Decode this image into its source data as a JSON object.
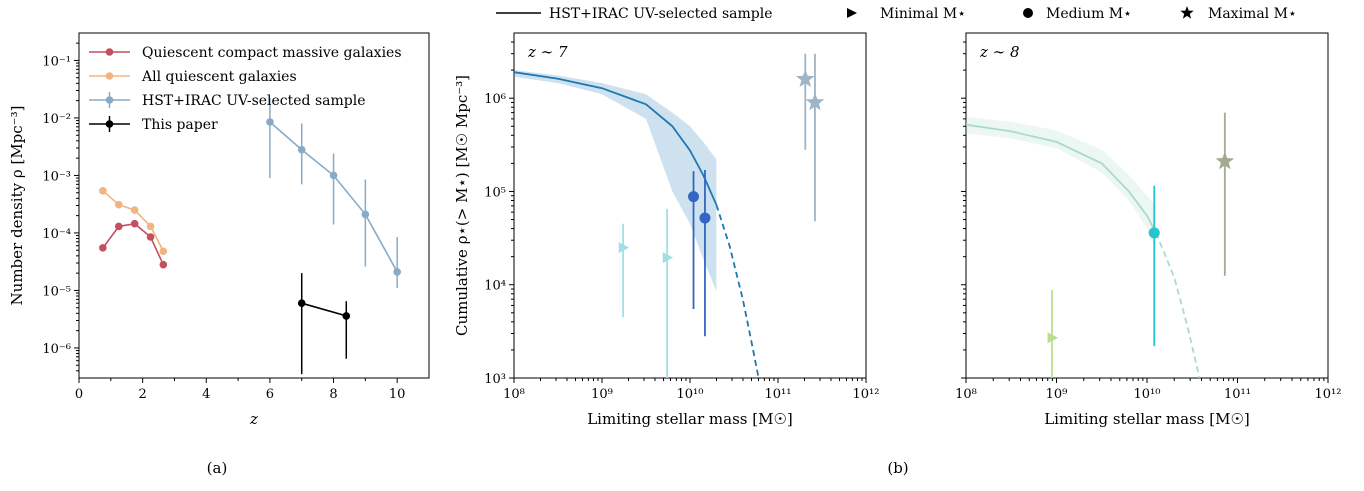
{
  "figure": {
    "caption_a": "(a)",
    "caption_b": "(b)"
  },
  "chart_data": [
    {
      "type": "line",
      "panel": "(a)",
      "xlabel": "z",
      "ylabel": "Number density ρ [Mpc⁻³]",
      "xlim": [
        0,
        11
      ],
      "ylim": [
        3e-07,
        0.3
      ],
      "yscale": "log",
      "xticks": [
        "0",
        "2",
        "4",
        "6",
        "8",
        "10"
      ],
      "yticks": [
        "10⁻⁶",
        "10⁻⁵",
        "10⁻⁴",
        "10⁻³",
        "10⁻²",
        "10⁻¹"
      ],
      "legend_position": "top-left",
      "colors": {
        "red": "#c4505f",
        "orange": "#f0b482",
        "blue": "#8aaac4",
        "black": "#000000"
      },
      "series": [
        {
          "name": "Quiescent compact massive galaxies",
          "color": "#c4505f",
          "points": [
            {
              "x": 0.75,
              "y": 5.5e-05
            },
            {
              "x": 1.25,
              "y": 0.00013
            },
            {
              "x": 1.75,
              "y": 0.000145
            },
            {
              "x": 2.25,
              "y": 8.5e-05
            },
            {
              "x": 2.65,
              "y": 2.8e-05
            }
          ]
        },
        {
          "name": "All quiescent galaxies",
          "color": "#f0b482",
          "points": [
            {
              "x": 0.75,
              "y": 0.00054
            },
            {
              "x": 1.25,
              "y": 0.00031
            },
            {
              "x": 1.75,
              "y": 0.00025
            },
            {
              "x": 2.25,
              "y": 0.00013
            },
            {
              "x": 2.65,
              "y": 4.8e-05
            }
          ]
        },
        {
          "name": "HST+IRAC UV-selected sample",
          "color": "#8aaac4",
          "points": [
            {
              "x": 6,
              "y": 0.0085,
              "lo": 0.0009,
              "hi": 0.022
            },
            {
              "x": 7,
              "y": 0.0028,
              "lo": 0.0007,
              "hi": 0.008
            },
            {
              "x": 8,
              "y": 0.001,
              "lo": 0.00014,
              "hi": 0.0024
            },
            {
              "x": 9,
              "y": 0.00021,
              "lo": 2.6e-05,
              "hi": 0.00085
            },
            {
              "x": 10,
              "y": 2.1e-05,
              "lo": 1.1e-05,
              "hi": 8.5e-05
            }
          ]
        },
        {
          "name": "This paper",
          "color": "#000000",
          "points": [
            {
              "x": 7,
              "y": 6e-06,
              "lo": 3.5e-07,
              "hi": 2e-05
            },
            {
              "x": 8.4,
              "y": 3.6e-06,
              "lo": 6.5e-07,
              "hi": 6.5e-06
            }
          ]
        }
      ]
    },
    {
      "type": "line",
      "panel": "(b) z ~ 7",
      "annotation": "z ∼ 7",
      "xlabel": "Limiting stellar mass [M☉]",
      "ylabel": "Cumulative ρ⋆(> M⋆) [M☉ Mpc⁻³]",
      "xscale": "log",
      "yscale": "log",
      "xlim": [
        100000000.0,
        1000000000000.0
      ],
      "ylim": [
        1000.0,
        5000000.0
      ],
      "xticks": [
        "10⁸",
        "10⁹",
        "10¹⁰",
        "10¹¹",
        "10¹²"
      ],
      "yticks": [
        "10³",
        "10⁴",
        "10⁵",
        "10⁶"
      ],
      "curve": {
        "name": "HST+IRAC UV-selected sample",
        "color": "#1f77b4",
        "solid": [
          [
            8.0,
            1900000.0
          ],
          [
            8.5,
            1620000.0
          ],
          [
            9.0,
            1280000.0
          ],
          [
            9.5,
            860000.0
          ],
          [
            9.8,
            500000.0
          ],
          [
            10.0,
            275000.0
          ],
          [
            10.15,
            150000.0
          ],
          [
            10.3,
            72000.0
          ]
        ],
        "dashed": [
          [
            10.3,
            72000.0
          ],
          [
            10.45,
            26000.0
          ],
          [
            10.6,
            7000.0
          ],
          [
            10.7,
            2400.0
          ],
          [
            10.78,
            1000.0
          ]
        ],
        "band_upper": [
          [
            8.0,
            2000000.0
          ],
          [
            8.5,
            1750000.0
          ],
          [
            9.0,
            1450000.0
          ],
          [
            9.5,
            1100000.0
          ],
          [
            9.8,
            700000.0
          ],
          [
            10.0,
            500000.0
          ],
          [
            10.15,
            340000.0
          ],
          [
            10.3,
            220000.0
          ]
        ],
        "band_lower": [
          [
            10.3,
            8500.0
          ],
          [
            10.15,
            19000.0
          ],
          [
            10.0,
            45000.0
          ],
          [
            9.8,
            100000.0
          ],
          [
            9.5,
            600000.0
          ],
          [
            9.0,
            1100000.0
          ],
          [
            8.5,
            1450000.0
          ],
          [
            8.0,
            1700000.0
          ]
        ]
      },
      "points": [
        {
          "name": "Minimal M⋆",
          "marker": "triangle",
          "color": "#a0e0e4",
          "x": 9.24,
          "y": 25000.0,
          "lo": 4500.0,
          "hi": 45000.0
        },
        {
          "name": "Minimal M⋆",
          "marker": "triangle",
          "color": "#a0e0e4",
          "x": 9.74,
          "y": 19500.0,
          "lo": 1000.0,
          "hi": 65000.0
        },
        {
          "name": "Medium M⋆",
          "marker": "circle",
          "color": "#3366c4",
          "x": 10.04,
          "y": 88000.0,
          "lo": 5500.0,
          "hi": 165000.0
        },
        {
          "name": "Medium M⋆",
          "marker": "circle",
          "color": "#3366c4",
          "x": 10.17,
          "y": 52000.0,
          "lo": 2800.0,
          "hi": 170000.0
        },
        {
          "name": "Maximal M⋆",
          "marker": "star",
          "color": "#9fb4c4",
          "x": 11.31,
          "y": 1600000.0,
          "lo": 280000.0,
          "hi": 3000000.0
        },
        {
          "name": "Maximal M⋆",
          "marker": "star",
          "color": "#9fb4c4",
          "x": 11.42,
          "y": 900000.0,
          "lo": 48000.0,
          "hi": 3000000.0
        }
      ]
    },
    {
      "type": "line",
      "panel": "(b) z ~ 8",
      "annotation": "z ∼ 8",
      "xlabel": "Limiting stellar mass [M☉]",
      "xscale": "log",
      "yscale": "log",
      "xlim": [
        100000000.0,
        1000000000000.0
      ],
      "ylim": [
        1000.0,
        5000000.0
      ],
      "xticks": [
        "10⁸",
        "10⁹",
        "10¹⁰",
        "10¹¹",
        "10¹²"
      ],
      "curve": {
        "name": "HST+IRAC UV-selected sample",
        "color": "#a8dcc8",
        "solid": [
          [
            8.0,
            520000.0
          ],
          [
            8.5,
            440000.0
          ],
          [
            9.0,
            340000.0
          ],
          [
            9.5,
            200000.0
          ],
          [
            9.8,
            100000.0
          ],
          [
            10.0,
            55000.0
          ],
          [
            10.1,
            36000.0
          ]
        ],
        "dashed": [
          [
            10.1,
            36000.0
          ],
          [
            10.3,
            12000.0
          ],
          [
            10.45,
            3500.0
          ],
          [
            10.58,
            1000.0
          ]
        ],
        "band_upper": [
          [
            8.0,
            630000.0
          ],
          [
            8.5,
            560000.0
          ],
          [
            9.0,
            450000.0
          ],
          [
            9.5,
            280000.0
          ],
          [
            9.8,
            150000.0
          ],
          [
            10.0,
            90000.0
          ],
          [
            10.1,
            70000.0
          ]
        ],
        "band_lower": [
          [
            10.1,
            23000.0
          ],
          [
            10.0,
            40000.0
          ],
          [
            9.8,
            80000.0
          ],
          [
            9.5,
            160000.0
          ],
          [
            9.0,
            290000.0
          ],
          [
            8.5,
            370000.0
          ],
          [
            8.0,
            420000.0
          ]
        ]
      },
      "points": [
        {
          "name": "Minimal M⋆",
          "marker": "triangle",
          "color": "#b8e08c",
          "x": 8.95,
          "y": 2700.0,
          "lo": 1000.0,
          "hi": 8800.0
        },
        {
          "name": "Medium M⋆",
          "marker": "circle",
          "color": "#26c4cc",
          "x": 10.08,
          "y": 36000.0,
          "lo": 2200.0,
          "hi": 115000.0
        },
        {
          "name": "Maximal M⋆",
          "marker": "star",
          "color": "#a2aa92",
          "x": 10.86,
          "y": 210000.0,
          "lo": 12500.0,
          "hi": 700000.0
        }
      ]
    }
  ],
  "top_legend": [
    {
      "label": "HST+IRAC UV-selected sample",
      "marker": "line"
    },
    {
      "label": "Minimal M⋆",
      "marker": "triangle"
    },
    {
      "label": "Medium M⋆",
      "marker": "circle"
    },
    {
      "label": "Maximal M⋆",
      "marker": "star"
    }
  ]
}
